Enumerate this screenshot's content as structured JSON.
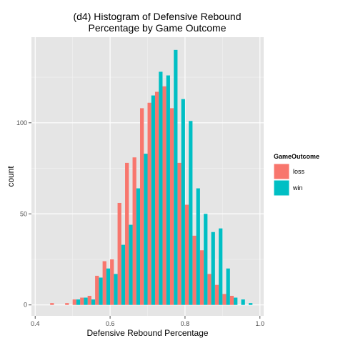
{
  "chart_data": {
    "type": "bar",
    "title_lines": [
      "(d4) Histogram of Defensive Rebound",
      "Percentage by Game Outcome"
    ],
    "xlabel": "Defensive Rebound Percentage",
    "ylabel": "count",
    "xlim": [
      0.39,
      1.01
    ],
    "ylim": [
      -6,
      147
    ],
    "x_ticks": [
      0.4,
      0.6,
      0.8,
      1.0
    ],
    "x_tick_labels": [
      "0.4",
      "0.6",
      "0.8",
      "1.0"
    ],
    "y_ticks": [
      0,
      50,
      100
    ],
    "y_tick_labels": [
      "0",
      "50",
      "100"
    ],
    "bin_width": 0.02,
    "bin_starts": [
      0.44,
      0.46,
      0.48,
      0.5,
      0.52,
      0.54,
      0.56,
      0.58,
      0.6,
      0.62,
      0.64,
      0.66,
      0.68,
      0.7,
      0.72,
      0.74,
      0.76,
      0.78,
      0.8,
      0.82,
      0.84,
      0.86,
      0.88,
      0.9,
      0.92,
      0.94,
      0.96
    ],
    "series": [
      {
        "name": "loss",
        "color": "#F8766D",
        "values": [
          1,
          0,
          1,
          3,
          4,
          5,
          16,
          24,
          25,
          56,
          78,
          81,
          108,
          111,
          117,
          120,
          108,
          78,
          55,
          38,
          30,
          17,
          11,
          6,
          5,
          0,
          0
        ]
      },
      {
        "name": "win",
        "color": "#00BFC4",
        "values": [
          0,
          0,
          0,
          3,
          4,
          3,
          15,
          20,
          17,
          33,
          44,
          64,
          83,
          115,
          128,
          126,
          140,
          113,
          101,
          64,
          50,
          40,
          42,
          20,
          4,
          3,
          1
        ]
      }
    ],
    "legend": {
      "title": "GameOutcome",
      "position": "right"
    },
    "grid": true
  }
}
